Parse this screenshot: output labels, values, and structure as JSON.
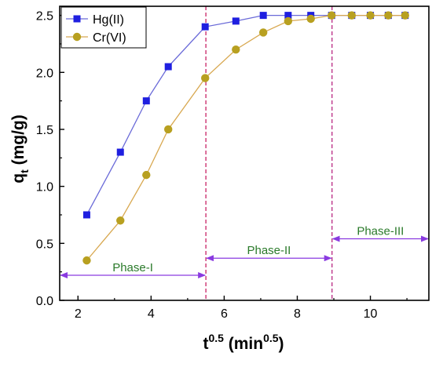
{
  "chart_data": {
    "type": "line",
    "xlabel": {
      "base": "t",
      "base_sup": "0.5",
      "units_open": " (min",
      "units_sup": "0.5",
      "units_close": ")"
    },
    "ylabel": {
      "base": "q",
      "base_sub": "t",
      "units": " (mg/g)"
    },
    "xlim": [
      1.5,
      11.6
    ],
    "ylim": [
      0.0,
      2.58
    ],
    "xticks": [
      2,
      4,
      6,
      8,
      10
    ],
    "xtick_labels": [
      "2",
      "4",
      "6",
      "8",
      "10"
    ],
    "yticks": [
      0.0,
      0.5,
      1.0,
      1.5,
      2.0,
      2.5
    ],
    "ytick_labels": [
      "0.0",
      "0.5",
      "1.0",
      "1.5",
      "2.0",
      "2.5"
    ],
    "grid": false,
    "legend_position": "top-left",
    "series": [
      {
        "name": "Hg(II)",
        "marker": "square",
        "color": "#1f1fe0",
        "line_color": "#6a6ad8",
        "x": [
          2.24,
          3.16,
          3.87,
          4.47,
          5.48,
          6.32,
          7.07,
          7.75,
          8.37,
          8.94,
          9.49,
          10.0,
          10.49,
          10.95
        ],
        "y": [
          0.75,
          1.3,
          1.75,
          2.05,
          2.4,
          2.45,
          2.5,
          2.5,
          2.5,
          2.5,
          2.5,
          2.5,
          2.5,
          2.5
        ]
      },
      {
        "name": "Cr(VI)",
        "marker": "circle",
        "color": "#b8a020",
        "line_color": "#d8a850",
        "x": [
          2.24,
          3.16,
          3.87,
          4.47,
          5.48,
          6.32,
          7.07,
          7.75,
          8.37,
          8.94,
          9.49,
          10.0,
          10.49,
          10.95
        ],
        "y": [
          0.35,
          0.7,
          1.1,
          1.5,
          1.95,
          2.2,
          2.35,
          2.45,
          2.47,
          2.5,
          2.5,
          2.5,
          2.5,
          2.5
        ]
      }
    ],
    "vlines": [
      {
        "x": 5.5,
        "color": "#d0407a"
      },
      {
        "x": 8.95,
        "color": "#c04090"
      }
    ],
    "phases": [
      {
        "label": "Phase-I",
        "x_start": 1.5,
        "x_end": 5.5,
        "y": 0.22
      },
      {
        "label": "Phase-II",
        "x_start": 5.5,
        "x_end": 8.95,
        "y": 0.37
      },
      {
        "label": "Phase-III",
        "x_start": 8.95,
        "x_end": 11.6,
        "y": 0.54
      }
    ],
    "phase_arrow_color": "#8a3ae0",
    "phase_label_color": "#2a7a2a"
  }
}
